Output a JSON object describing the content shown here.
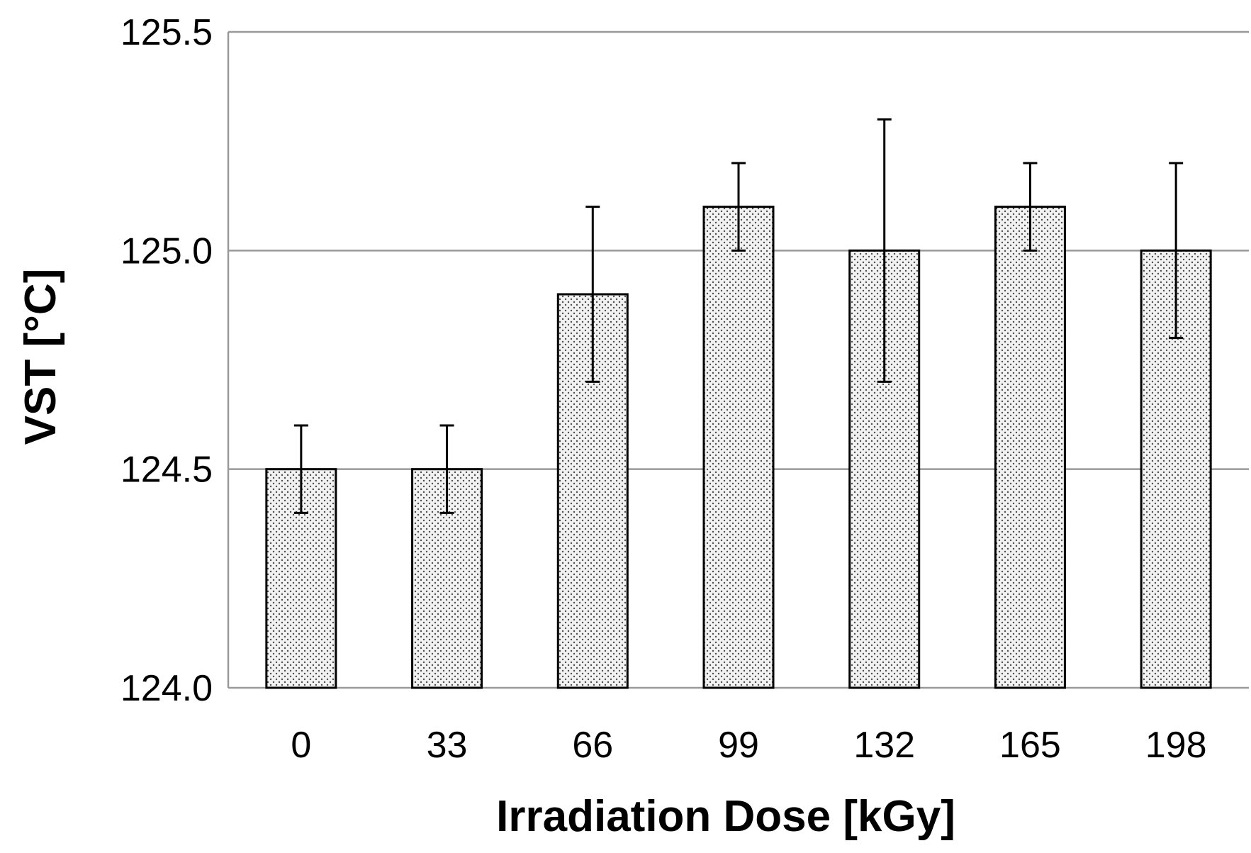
{
  "chart_data": {
    "type": "bar",
    "title": "",
    "xlabel": "Irradiation Dose [kGy]",
    "ylabel": "VST [°C]",
    "categories": [
      "0",
      "33",
      "66",
      "99",
      "132",
      "165",
      "198"
    ],
    "values": [
      124.5,
      124.5,
      124.9,
      125.1,
      125.0,
      125.1,
      125.0
    ],
    "errors": [
      0.1,
      0.1,
      0.2,
      0.1,
      0.3,
      0.1,
      0.2
    ],
    "ylim": [
      124.0,
      125.5
    ],
    "yticks": [
      "124.0",
      "124.5",
      "125.0",
      "125.5"
    ],
    "grid": true,
    "legend": "none",
    "colors": {
      "bar_fill": "#f2f2f2",
      "bar_dots": "#4d4d4d",
      "bar_stroke": "#000000",
      "grid": "#999999",
      "error_bar": "#000000"
    }
  }
}
